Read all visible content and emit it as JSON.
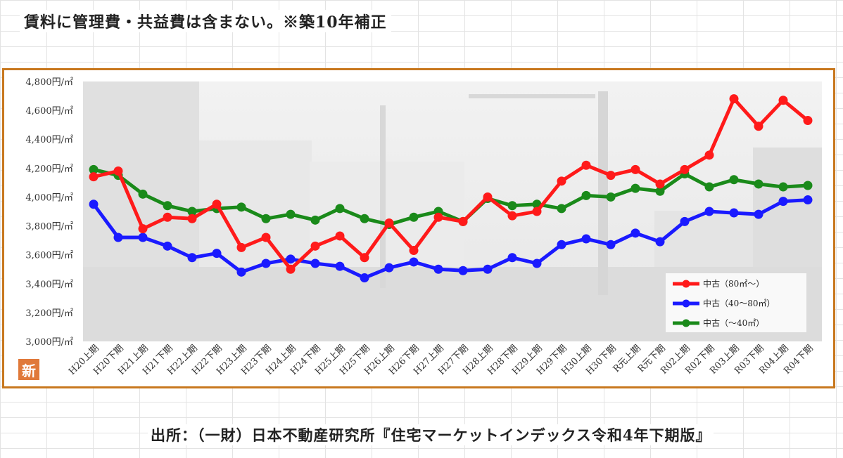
{
  "header": {
    "note": "賃料に管理費・共益費は含まない。※築10年補正"
  },
  "footer": {
    "source": "出所：（一財）日本不動産研究所『住宅マーケットインデックス令和4年下期版』"
  },
  "badge": {
    "label": "新"
  },
  "chart_data": {
    "type": "line",
    "categories": [
      "H20上期",
      "H20下期",
      "H21上期",
      "H21下期",
      "H22上期",
      "H22下期",
      "H23上期",
      "H23下期",
      "H24上期",
      "H24下期",
      "H25上期",
      "H25下期",
      "H26上期",
      "H26下期",
      "H27上期",
      "H27下期",
      "H28上期",
      "H28下期",
      "H29上期",
      "H29下期",
      "H30上期",
      "H30下期",
      "R元上期",
      "R元下期",
      "R02上期",
      "R02下期",
      "R03上期",
      "R03下期",
      "R04上期",
      "R04下期"
    ],
    "yticks": [
      "3,000円/㎡",
      "3,200円/㎡",
      "3,400円/㎡",
      "3,600円/㎡",
      "3,800円/㎡",
      "4,000円/㎡",
      "4,200円/㎡",
      "4,400円/㎡",
      "4,600円/㎡",
      "4,800円/㎡"
    ],
    "ylim": [
      3000,
      4800
    ],
    "grid": false,
    "legend_position": "bottom-right",
    "series": [
      {
        "name": "中古（80㎡～）",
        "color": "#ff1a1a",
        "values": [
          4140,
          4180,
          3780,
          3860,
          3850,
          3950,
          3650,
          3720,
          3500,
          3660,
          3730,
          3580,
          3820,
          3630,
          3860,
          3830,
          4000,
          3870,
          3900,
          4110,
          4220,
          4150,
          4190,
          4090,
          4190,
          4290,
          4680,
          4490,
          4670,
          4530
        ]
      },
      {
        "name": "中古（40～80㎡）",
        "color": "#1a1aff",
        "values": [
          3950,
          3720,
          3720,
          3660,
          3580,
          3610,
          3480,
          3540,
          3570,
          3540,
          3520,
          3440,
          3510,
          3550,
          3500,
          3490,
          3500,
          3580,
          3540,
          3670,
          3710,
          3670,
          3750,
          3690,
          3830,
          3900,
          3890,
          3880,
          3970,
          3980
        ]
      },
      {
        "name": "中古（～40㎡）",
        "color": "#1a8a1a",
        "values": [
          4190,
          4150,
          4020,
          3940,
          3900,
          3920,
          3930,
          3850,
          3880,
          3840,
          3920,
          3850,
          3810,
          3860,
          3900,
          3830,
          3990,
          3940,
          3950,
          3920,
          4010,
          4000,
          4060,
          4040,
          4160,
          4070,
          4120,
          4090,
          4070,
          4080
        ]
      }
    ]
  }
}
